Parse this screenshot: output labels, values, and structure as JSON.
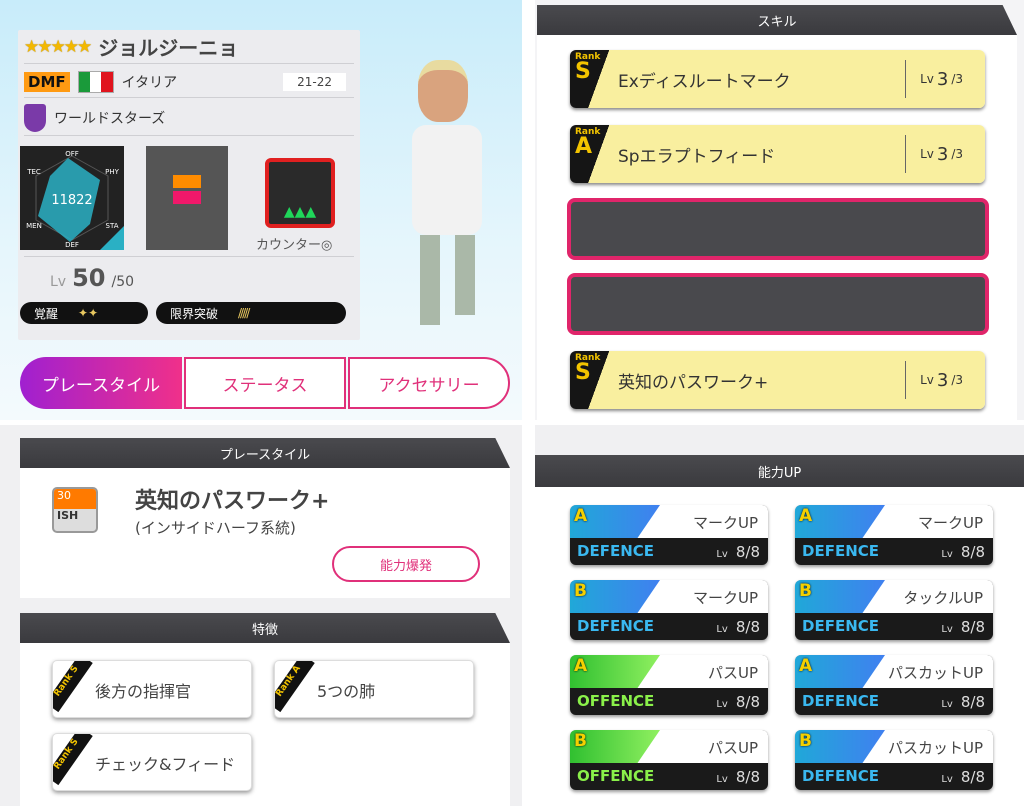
{
  "player": {
    "rarity": "★★★★★",
    "name": "ジョルジーニョ",
    "position": "DMF",
    "country": "イタリア",
    "season": "21-22",
    "team": "ワールドスターズ",
    "total": "11822",
    "radar_labels": [
      "OFF",
      "PHY",
      "STA",
      "DEF",
      "MEN",
      "TEC"
    ],
    "tactic": "カウンター◎",
    "lv_label": "Lv",
    "level": "50",
    "max_level": "/50",
    "awaken_label": "覚醒",
    "awaken_stars": "✦✦",
    "limit_label": "限界突破",
    "limit_count": 5,
    "accent": "#e0307a"
  },
  "tabs": [
    {
      "label": "プレースタイル",
      "active": true
    },
    {
      "label": "ステータス"
    },
    {
      "label": "アクセサリー"
    }
  ],
  "skills": {
    "title": "スキル",
    "items": [
      {
        "rank": "S",
        "name": "Exディスルートマーク",
        "lv": "3",
        "max": "/3"
      },
      {
        "rank": "A",
        "name": "Spエラプトフィード",
        "lv": "3",
        "max": "/3"
      },
      {
        "empty": true
      },
      {
        "empty": true
      },
      {
        "rank": "S",
        "name": "英知のパスワーク+",
        "lv": "3",
        "max": "/3"
      }
    ],
    "rank_label": "Rank",
    "lv_label": "Lv"
  },
  "playstyle": {
    "title": "プレースタイル",
    "level": "30",
    "code": "ISH",
    "name": "英知のパスワーク+",
    "sub": "(インサイドハーフ系統)",
    "button": "能力爆発"
  },
  "traits": {
    "title": "特徴",
    "items": [
      {
        "rank": "Rank S",
        "name": "後方の指揮官"
      },
      {
        "rank": "Rank A",
        "name": "5つの肺"
      },
      {
        "rank": "Rank S",
        "name": "チェック&フィード"
      }
    ]
  },
  "abilities": {
    "title": "能力UP",
    "lv_label": "Lv",
    "items": [
      {
        "grade": "A",
        "name": "マークUP",
        "cat": "DEFENCE",
        "lv": "8/8"
      },
      {
        "grade": "A",
        "name": "マークUP",
        "cat": "DEFENCE",
        "lv": "8/8"
      },
      {
        "grade": "B",
        "name": "マークUP",
        "cat": "DEFENCE",
        "lv": "8/8"
      },
      {
        "grade": "B",
        "name": "タックルUP",
        "cat": "DEFENCE",
        "lv": "8/8"
      },
      {
        "grade": "A",
        "name": "パスUP",
        "cat": "OFFENCE",
        "lv": "8/8"
      },
      {
        "grade": "A",
        "name": "パスカットUP",
        "cat": "DEFENCE",
        "lv": "8/8"
      },
      {
        "grade": "B",
        "name": "パスUP",
        "cat": "OFFENCE",
        "lv": "8/8"
      },
      {
        "grade": "B",
        "name": "パスカットUP",
        "cat": "DEFENCE",
        "lv": "8/8"
      }
    ]
  }
}
